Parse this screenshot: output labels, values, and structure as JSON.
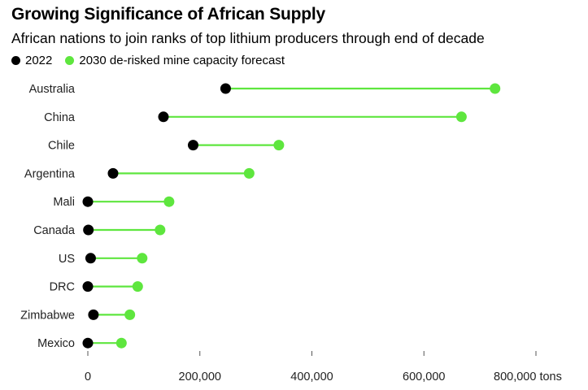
{
  "chart_data": {
    "type": "dumbbell",
    "title": "Growing Significance of African Supply",
    "subtitle": "African nations to join ranks of top lithium producers through end of decade",
    "categories": [
      "Australia",
      "China",
      "Chile",
      "Argentina",
      "Mali",
      "Canada",
      "US",
      "DRC",
      "Zimbabwe",
      "Mexico"
    ],
    "series": [
      {
        "name": "2022",
        "color": "#000000",
        "values": [
          246000,
          135000,
          188000,
          45000,
          0,
          1000,
          5000,
          0,
          10000,
          0
        ]
      },
      {
        "name": "2030 de-risked mine capacity forecast",
        "color": "#5ee63e",
        "values": [
          727000,
          667000,
          341000,
          288000,
          145000,
          129000,
          97000,
          89000,
          75000,
          60000
        ]
      }
    ],
    "xlim": [
      0,
      800000
    ],
    "x_ticks": [
      {
        "value": 0,
        "label": "0"
      },
      {
        "value": 200000,
        "label": "200,000"
      },
      {
        "value": 400000,
        "label": "400,000"
      },
      {
        "value": 600000,
        "label": "600,000"
      },
      {
        "value": 800000,
        "label": "800,000 tons"
      }
    ],
    "grid": false
  }
}
